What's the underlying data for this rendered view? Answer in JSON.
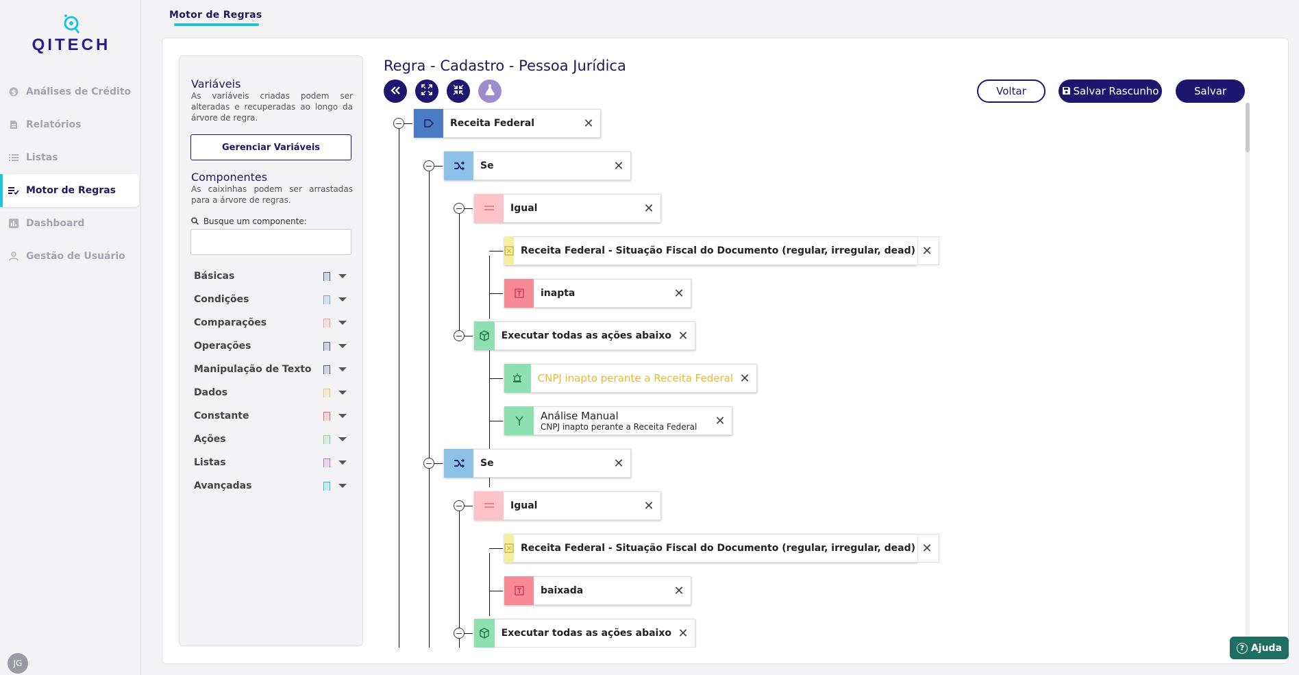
{
  "app": {
    "brand": "QITECH",
    "avatar_initials": "JG",
    "help_label": "Ajuda"
  },
  "sidebar": {
    "items": [
      {
        "label": "Análises de Crédito",
        "icon": "dollar-circle-icon",
        "active": false
      },
      {
        "label": "Relatórios",
        "icon": "report-icon",
        "active": false
      },
      {
        "label": "Listas",
        "icon": "list-icon",
        "active": false
      },
      {
        "label": "Motor de Regras",
        "icon": "rules-icon",
        "active": true
      },
      {
        "label": "Dashboard",
        "icon": "bar-chart-icon",
        "active": false
      },
      {
        "label": "Gestão de Usuário",
        "icon": "user-icon",
        "active": false
      }
    ]
  },
  "header": {
    "tab": "Motor de Regras"
  },
  "left_panel": {
    "variables_title": "Variáveis",
    "variables_desc": "As variáveis criadas podem ser alteradas e recuperadas ao longo da árvore de regra.",
    "manage_button": "Gerenciar Variáveis",
    "components_title": "Componentes",
    "components_desc": "As caixinhas podem ser arrastadas para a árvore de regras.",
    "search_label": "Busque um componente:",
    "search_placeholder": "",
    "components": [
      {
        "label": "Básicas",
        "color": "#3b5b9a"
      },
      {
        "label": "Condições",
        "color": "#6fa6d8"
      },
      {
        "label": "Comparações",
        "color": "#f0a0a8"
      },
      {
        "label": "Operações",
        "color": "#4a5a8a"
      },
      {
        "label": "Manipulação de Texto",
        "color": "#555a7a"
      },
      {
        "label": "Dados",
        "color": "#e8d890"
      },
      {
        "label": "Constante",
        "color": "#e8606e"
      },
      {
        "label": "Ações",
        "color": "#7ad4a0"
      },
      {
        "label": "Listas",
        "color": "#b07ad4"
      },
      {
        "label": "Avançadas",
        "color": "#2ec4b6"
      }
    ]
  },
  "editor": {
    "title": "Regra - Cadastro - Pessoa Jurídica",
    "toolbar": {
      "collapse_icon": "double-chevron-left-icon",
      "expand_icon": "expand-icon",
      "compress_icon": "compress-icon",
      "test_icon": "flask-icon"
    },
    "buttons": {
      "back": "Voltar",
      "save_draft": "Salvar Rascunho",
      "save": "Salvar"
    },
    "tree": [
      {
        "label": "Receita Federal",
        "type": "root",
        "color": "#4a7cc4"
      },
      {
        "label": "Se",
        "type": "condition",
        "color": "#8cc2e8"
      },
      {
        "label": "Igual",
        "type": "comparison",
        "color": "#fcc4c8"
      },
      {
        "label": "Receita Federal - Situação Fiscal do Documento (regular, irregular, dead)",
        "type": "data",
        "color": "#f4f0a0"
      },
      {
        "label": "inapta",
        "type": "constant",
        "color": "#f68a96"
      },
      {
        "label": "Executar todas as ações abaixo",
        "type": "action-group",
        "color": "#8ee0b0"
      },
      {
        "label": "CNPJ inapto perante a Receita Federal",
        "type": "alert",
        "color": "#8ee0b0",
        "text_color": "#e8b830"
      },
      {
        "label": "Análise Manual",
        "sublabel": "CNPJ inapto perante a Receita Federal",
        "type": "decision",
        "color": "#8ee0b0"
      },
      {
        "label": "Se",
        "type": "condition",
        "color": "#8cc2e8"
      },
      {
        "label": "Igual",
        "type": "comparison",
        "color": "#fcc4c8"
      },
      {
        "label": "Receita Federal - Situação Fiscal do Documento (regular, irregular, dead)",
        "type": "data",
        "color": "#f4f0a0"
      },
      {
        "label": "baixada",
        "type": "constant",
        "color": "#f68a96"
      },
      {
        "label": "Executar todas as ações abaixo",
        "type": "action-group",
        "color": "#8ee0b0"
      }
    ]
  }
}
